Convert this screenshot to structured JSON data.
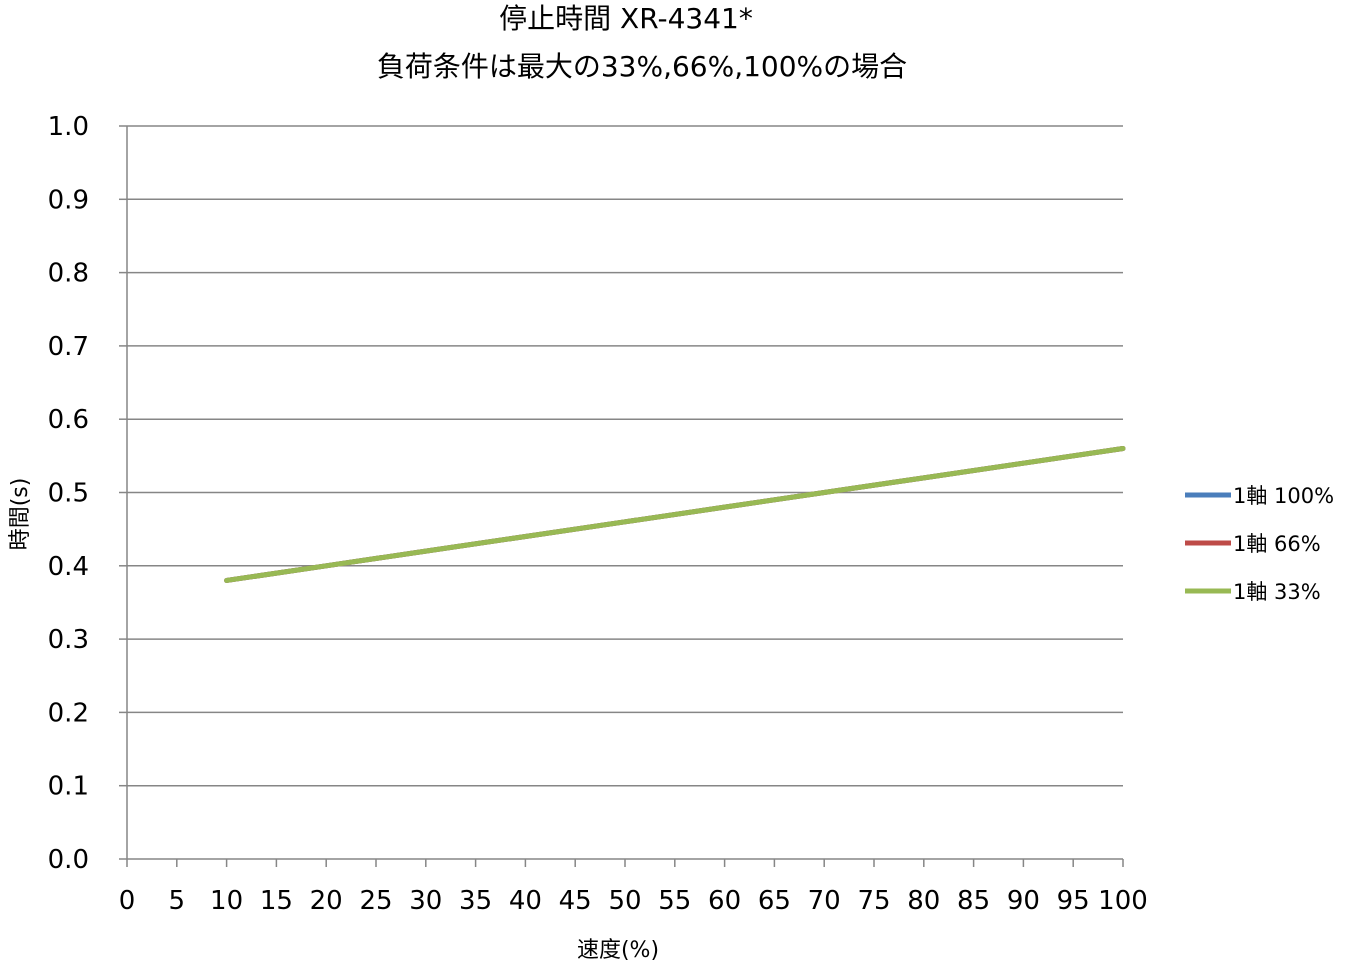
{
  "chart_data": {
    "type": "line",
    "title": "停止時間 XR-4341*",
    "subtitle": "負荷条件は最大の33%,66%,100%の場合",
    "xlabel": "速度(%)",
    "ylabel": "時間(s)",
    "xlim": [
      0,
      100
    ],
    "ylim": [
      0.0,
      1.0
    ],
    "x_ticks": [
      0,
      5,
      10,
      15,
      20,
      25,
      30,
      35,
      40,
      45,
      50,
      55,
      60,
      65,
      70,
      75,
      80,
      85,
      90,
      95,
      100
    ],
    "y_ticks": [
      0.0,
      0.1,
      0.2,
      0.3,
      0.4,
      0.5,
      0.6,
      0.7,
      0.8,
      0.9,
      1.0
    ],
    "y_tick_labels": [
      "0.0",
      "0.1",
      "0.2",
      "0.3",
      "0.4",
      "0.5",
      "0.6",
      "0.7",
      "0.8",
      "0.9",
      "1.0"
    ],
    "grid": "horizontal",
    "legend_position": "right",
    "x": [
      10,
      20,
      30,
      40,
      50,
      60,
      70,
      80,
      90,
      100
    ],
    "series": [
      {
        "name": "1軸 100%",
        "color": "#4a7ebb",
        "values": [
          0.38,
          0.4,
          0.42,
          0.44,
          0.46,
          0.48,
          0.5,
          0.52,
          0.54,
          0.56
        ]
      },
      {
        "name": "1軸 66%",
        "color": "#be4b48",
        "values": [
          0.38,
          0.4,
          0.42,
          0.44,
          0.46,
          0.48,
          0.5,
          0.52,
          0.54,
          0.56
        ]
      },
      {
        "name": "1軸 33%",
        "color": "#98b954",
        "values": [
          0.38,
          0.4,
          0.42,
          0.44,
          0.46,
          0.48,
          0.5,
          0.52,
          0.54,
          0.56
        ]
      }
    ],
    "colors": {
      "gridline": "#868686",
      "axis": "#868686",
      "background": "#ffffff"
    }
  }
}
